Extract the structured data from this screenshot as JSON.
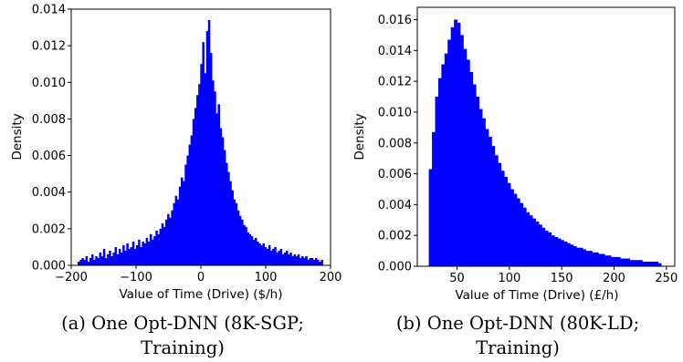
{
  "figure": {
    "colors": {
      "bar": "#0000ff",
      "axis": "#000000",
      "background": "#ffffff"
    }
  },
  "chart_data": [
    {
      "type": "bar",
      "title": "",
      "xlabel": "Value of Time (Drive) ($/h)",
      "ylabel": "Density",
      "caption_line1": "(a) One Opt-DNN (8K-SGP;",
      "caption_line2": "Training)",
      "xlim": [
        -200,
        200
      ],
      "ylim": [
        0,
        0.014
      ],
      "x_ticks": [
        -200,
        -100,
        0,
        100,
        200
      ],
      "y_ticks": [
        0.0,
        0.002,
        0.004,
        0.006,
        0.008,
        0.01,
        0.012,
        0.014
      ],
      "x_tick_labels": [
        "−200",
        "−100",
        "0",
        "100",
        "200"
      ],
      "y_tick_labels": [
        "0.000",
        "0.002",
        "0.004",
        "0.006",
        "0.008",
        "0.010",
        "0.012",
        "0.014"
      ],
      "grid": false,
      "bin_start": -190,
      "bin_width": 3,
      "values": [
        0.0002,
        0.0003,
        0.0004,
        0.0003,
        0.0005,
        0.0002,
        0.0004,
        0.0006,
        0.0003,
        0.0005,
        0.0004,
        0.0007,
        0.0005,
        0.0009,
        0.0004,
        0.0006,
        0.0008,
        0.0005,
        0.0007,
        0.001,
        0.0006,
        0.0009,
        0.0007,
        0.0011,
        0.0008,
        0.0012,
        0.0009,
        0.001,
        0.0013,
        0.0009,
        0.0011,
        0.0014,
        0.001,
        0.0013,
        0.0012,
        0.0015,
        0.0013,
        0.0017,
        0.0014,
        0.0016,
        0.0019,
        0.0017,
        0.002,
        0.0023,
        0.0021,
        0.0025,
        0.0028,
        0.0026,
        0.003,
        0.0034,
        0.0038,
        0.0036,
        0.0043,
        0.0048,
        0.0046,
        0.0055,
        0.006,
        0.0066,
        0.0071,
        0.008,
        0.0086,
        0.0093,
        0.0099,
        0.011,
        0.0122,
        0.0105,
        0.0128,
        0.0134,
        0.0116,
        0.0101,
        0.0095,
        0.0083,
        0.0088,
        0.0075,
        0.007,
        0.0063,
        0.0056,
        0.0051,
        0.0046,
        0.0041,
        0.0036,
        0.0034,
        0.003,
        0.0027,
        0.0025,
        0.0022,
        0.0021,
        0.0018,
        0.0017,
        0.0016,
        0.0014,
        0.0015,
        0.0013,
        0.0012,
        0.0011,
        0.0012,
        0.001,
        0.0009,
        0.0011,
        0.0008,
        0.0009,
        0.001,
        0.0007,
        0.0008,
        0.0009,
        0.0006,
        0.0007,
        0.0008,
        0.0006,
        0.0007,
        0.0005,
        0.0006,
        0.0005,
        0.0006,
        0.0004,
        0.0005,
        0.0004,
        0.0005,
        0.0003,
        0.0004,
        0.0004,
        0.0003,
        0.0004,
        0.0003,
        0.0002,
        0.0003
      ]
    },
    {
      "type": "bar",
      "title": "",
      "xlabel": "Value of Time (Drive) (£/h)",
      "ylabel": "Density",
      "caption_line1": "(b) One Opt-DNN (80K-LD;",
      "caption_line2": "Training)",
      "xlim": [
        12,
        258
      ],
      "ylim": [
        0,
        0.0168
      ],
      "x_ticks": [
        50,
        100,
        150,
        200,
        250
      ],
      "y_ticks": [
        0.0,
        0.002,
        0.004,
        0.006,
        0.008,
        0.01,
        0.012,
        0.014,
        0.016
      ],
      "x_tick_labels": [
        "50",
        "100",
        "150",
        "200",
        "250"
      ],
      "y_tick_labels": [
        "0.000",
        "0.002",
        "0.004",
        "0.006",
        "0.008",
        "0.010",
        "0.012",
        "0.014",
        "0.016"
      ],
      "grid": false,
      "bin_start": 23,
      "bin_width": 3,
      "values": [
        0.0063,
        0.0087,
        0.011,
        0.0122,
        0.0131,
        0.0138,
        0.0147,
        0.0155,
        0.016,
        0.0158,
        0.015,
        0.0141,
        0.0134,
        0.0126,
        0.0118,
        0.011,
        0.0102,
        0.0096,
        0.0089,
        0.0084,
        0.0078,
        0.0072,
        0.0067,
        0.0062,
        0.0058,
        0.0054,
        0.005,
        0.0047,
        0.0044,
        0.0041,
        0.0038,
        0.0035,
        0.0033,
        0.0031,
        0.0029,
        0.0027,
        0.0025,
        0.0023,
        0.0022,
        0.002,
        0.0019,
        0.0018,
        0.0017,
        0.0016,
        0.0015,
        0.0014,
        0.0013,
        0.0012,
        0.0012,
        0.0011,
        0.001,
        0.001,
        0.0009,
        0.0009,
        0.0008,
        0.0008,
        0.0007,
        0.0007,
        0.0006,
        0.0006,
        0.0006,
        0.0005,
        0.0005,
        0.0005,
        0.0004,
        0.0004,
        0.0004,
        0.0004,
        0.0003,
        0.0003,
        0.0003,
        0.0003,
        0.0003,
        0.0002
      ]
    }
  ]
}
